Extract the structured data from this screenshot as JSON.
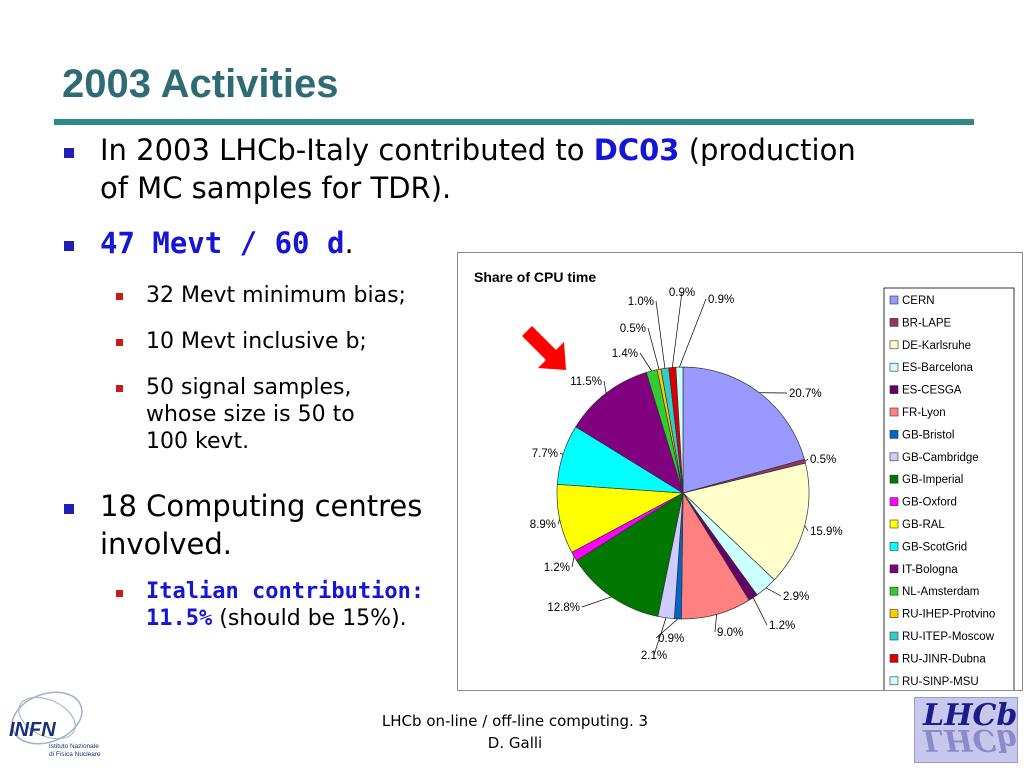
{
  "slide": {
    "title": "2003 Activities",
    "bullets": {
      "b1_pre": "In 2003 LHCb-Italy contributed to",
      "b1_highlight": "DC03",
      "b1_post": "(production",
      "b1_line2": "of MC samples for TDR).",
      "b2_highlight": "47 Mevt / 60 d",
      "b2_post": ".",
      "sub1": "32 Mevt minimum bias;",
      "sub2": "10 Mevt inclusive b;",
      "sub3_l1": "50 signal samples,",
      "sub3_l2": "whose size is 50 to",
      "sub3_l3": "100 kevt.",
      "b3_l1": "18 Computing centres",
      "b3_l2": "involved.",
      "sub4_l1": "Italian contribution:",
      "sub4_highlight": "11.5%",
      "sub4_post": "(should be 15%)."
    },
    "footer": {
      "line1": "LHCb on-line / off-line computing. 3",
      "line2": "D. Galli"
    },
    "logos": {
      "infn_text": "INFN",
      "infn_sub1": "Istituto Nazionale",
      "infn_sub2": "di Fisica Nucleare",
      "lhcb_text": "LHCb"
    }
  },
  "chart_data": {
    "type": "pie",
    "title": "Share of CPU time",
    "legend_position": "right",
    "slices": [
      {
        "name": "CERN",
        "value": 20.7,
        "label": "20.7%",
        "color": "#9999ff"
      },
      {
        "name": "BR-LAPE",
        "value": 0.5,
        "label": "0.5%",
        "color": "#993366"
      },
      {
        "name": "DE-Karlsruhe",
        "value": 15.9,
        "label": "15.9%",
        "color": "#ffffcc"
      },
      {
        "name": "ES-Barcelona",
        "value": 2.9,
        "label": "2.9%",
        "color": "#ccffff"
      },
      {
        "name": "ES-CESGA",
        "value": 1.2,
        "label": "1.2%",
        "color": "#660066"
      },
      {
        "name": "FR-Lyon",
        "value": 9.0,
        "label": "9.0%",
        "color": "#ff8080"
      },
      {
        "name": "GB-Bristol",
        "value": 0.9,
        "label": "0.9%",
        "color": "#0066cc"
      },
      {
        "name": "GB-Cambridge",
        "value": 2.1,
        "label": "2.1%",
        "color": "#ccccff"
      },
      {
        "name": "GB-Imperial",
        "value": 12.8,
        "label": "12.8%",
        "color": "#007700"
      },
      {
        "name": "GB-Oxford",
        "value": 1.2,
        "label": "1.2%",
        "color": "#ff00ff"
      },
      {
        "name": "GB-RAL",
        "value": 8.9,
        "label": "8.9%",
        "color": "#ffff00"
      },
      {
        "name": "GB-ScotGrid",
        "value": 7.7,
        "label": "7.7%",
        "color": "#00ffff"
      },
      {
        "name": "IT-Bologna",
        "value": 11.5,
        "label": "11.5%",
        "color": "#800080"
      },
      {
        "name": "NL-Amsterdam",
        "value": 1.4,
        "label": "1.4%",
        "color": "#33cc33"
      },
      {
        "name": "RU-IHEP-Protvino",
        "value": 0.5,
        "label": "0.5%",
        "color": "#ffcc00"
      },
      {
        "name": "RU-ITEP-Moscow",
        "value": 1.0,
        "label": "1.0%",
        "color": "#33cccc"
      },
      {
        "name": "RU-JINR-Dubna",
        "value": 0.9,
        "label": "0.9%",
        "color": "#dd0000"
      },
      {
        "name": "RU-SINP-MSU",
        "value": 0.9,
        "label": "0.9%",
        "color": "#ccffff"
      }
    ],
    "arrow_color": "#ff0000"
  }
}
